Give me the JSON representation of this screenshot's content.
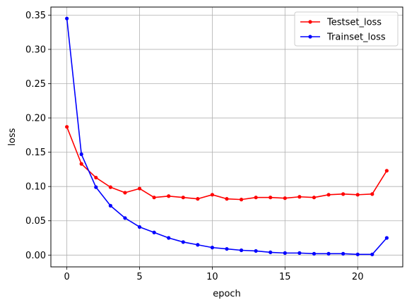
{
  "chart_data": {
    "type": "line",
    "title": "",
    "xlabel": "epoch",
    "ylabel": "loss",
    "xlim": [
      -1.1,
      23.1
    ],
    "ylim": [
      -0.0172,
      0.3617
    ],
    "xticks": [
      0,
      5,
      10,
      15,
      20
    ],
    "yticks": [
      0.0,
      0.05,
      0.1,
      0.15,
      0.2,
      0.25,
      0.3,
      0.35
    ],
    "ytick_labels": [
      "0.00",
      "0.05",
      "0.10",
      "0.15",
      "0.20",
      "0.25",
      "0.30",
      "0.35"
    ],
    "grid": true,
    "legend": "top-right",
    "x": [
      0,
      1,
      2,
      3,
      4,
      5,
      6,
      7,
      8,
      9,
      10,
      11,
      12,
      13,
      14,
      15,
      16,
      17,
      18,
      19,
      20,
      21,
      22
    ],
    "series": [
      {
        "name": "Testset_loss",
        "color": "#ff0000",
        "values": [
          0.187,
          0.133,
          0.113,
          0.099,
          0.091,
          0.097,
          0.084,
          0.086,
          0.084,
          0.082,
          0.088,
          0.082,
          0.081,
          0.084,
          0.084,
          0.083,
          0.085,
          0.084,
          0.088,
          0.089,
          0.088,
          0.089,
          0.123
        ]
      },
      {
        "name": "Trainset_loss",
        "color": "#0000ff",
        "values": [
          0.345,
          0.147,
          0.099,
          0.072,
          0.054,
          0.041,
          0.033,
          0.025,
          0.019,
          0.015,
          0.011,
          0.009,
          0.007,
          0.006,
          0.004,
          0.003,
          0.003,
          0.002,
          0.002,
          0.002,
          0.001,
          0.001,
          0.025
        ]
      }
    ]
  }
}
